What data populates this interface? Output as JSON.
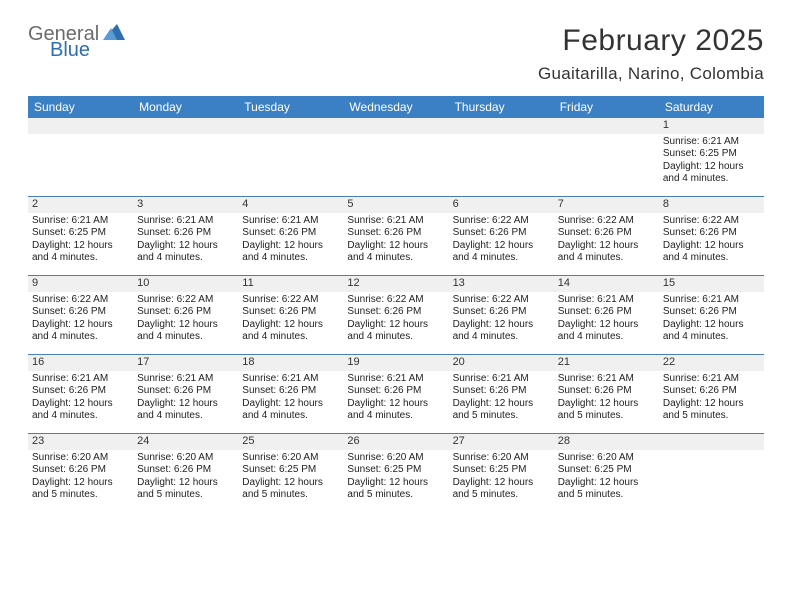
{
  "logo": {
    "line1": "General",
    "line2": "Blue",
    "tri_color": "#2f6fb0"
  },
  "title": "February 2025",
  "location": "Guaitarilla, Narino, Colombia",
  "colors": {
    "header_bg": "#3b7fc4",
    "header_text": "#ffffff",
    "row_border": "#4a7fb5",
    "daynum_bg": "#f0f0f0",
    "text": "#222222",
    "logo_grey": "#6b6b6b",
    "logo_blue": "#2f6fb0"
  },
  "weekdays": [
    "Sunday",
    "Monday",
    "Tuesday",
    "Wednesday",
    "Thursday",
    "Friday",
    "Saturday"
  ],
  "weeks": [
    [
      {
        "day": null
      },
      {
        "day": null
      },
      {
        "day": null
      },
      {
        "day": null
      },
      {
        "day": null
      },
      {
        "day": null
      },
      {
        "day": "1",
        "sunrise": "Sunrise: 6:21 AM",
        "sunset": "Sunset: 6:25 PM",
        "daylight1": "Daylight: 12 hours",
        "daylight2": "and 4 minutes."
      }
    ],
    [
      {
        "day": "2",
        "sunrise": "Sunrise: 6:21 AM",
        "sunset": "Sunset: 6:25 PM",
        "daylight1": "Daylight: 12 hours",
        "daylight2": "and 4 minutes."
      },
      {
        "day": "3",
        "sunrise": "Sunrise: 6:21 AM",
        "sunset": "Sunset: 6:26 PM",
        "daylight1": "Daylight: 12 hours",
        "daylight2": "and 4 minutes."
      },
      {
        "day": "4",
        "sunrise": "Sunrise: 6:21 AM",
        "sunset": "Sunset: 6:26 PM",
        "daylight1": "Daylight: 12 hours",
        "daylight2": "and 4 minutes."
      },
      {
        "day": "5",
        "sunrise": "Sunrise: 6:21 AM",
        "sunset": "Sunset: 6:26 PM",
        "daylight1": "Daylight: 12 hours",
        "daylight2": "and 4 minutes."
      },
      {
        "day": "6",
        "sunrise": "Sunrise: 6:22 AM",
        "sunset": "Sunset: 6:26 PM",
        "daylight1": "Daylight: 12 hours",
        "daylight2": "and 4 minutes."
      },
      {
        "day": "7",
        "sunrise": "Sunrise: 6:22 AM",
        "sunset": "Sunset: 6:26 PM",
        "daylight1": "Daylight: 12 hours",
        "daylight2": "and 4 minutes."
      },
      {
        "day": "8",
        "sunrise": "Sunrise: 6:22 AM",
        "sunset": "Sunset: 6:26 PM",
        "daylight1": "Daylight: 12 hours",
        "daylight2": "and 4 minutes."
      }
    ],
    [
      {
        "day": "9",
        "sunrise": "Sunrise: 6:22 AM",
        "sunset": "Sunset: 6:26 PM",
        "daylight1": "Daylight: 12 hours",
        "daylight2": "and 4 minutes."
      },
      {
        "day": "10",
        "sunrise": "Sunrise: 6:22 AM",
        "sunset": "Sunset: 6:26 PM",
        "daylight1": "Daylight: 12 hours",
        "daylight2": "and 4 minutes."
      },
      {
        "day": "11",
        "sunrise": "Sunrise: 6:22 AM",
        "sunset": "Sunset: 6:26 PM",
        "daylight1": "Daylight: 12 hours",
        "daylight2": "and 4 minutes."
      },
      {
        "day": "12",
        "sunrise": "Sunrise: 6:22 AM",
        "sunset": "Sunset: 6:26 PM",
        "daylight1": "Daylight: 12 hours",
        "daylight2": "and 4 minutes."
      },
      {
        "day": "13",
        "sunrise": "Sunrise: 6:22 AM",
        "sunset": "Sunset: 6:26 PM",
        "daylight1": "Daylight: 12 hours",
        "daylight2": "and 4 minutes."
      },
      {
        "day": "14",
        "sunrise": "Sunrise: 6:21 AM",
        "sunset": "Sunset: 6:26 PM",
        "daylight1": "Daylight: 12 hours",
        "daylight2": "and 4 minutes."
      },
      {
        "day": "15",
        "sunrise": "Sunrise: 6:21 AM",
        "sunset": "Sunset: 6:26 PM",
        "daylight1": "Daylight: 12 hours",
        "daylight2": "and 4 minutes."
      }
    ],
    [
      {
        "day": "16",
        "sunrise": "Sunrise: 6:21 AM",
        "sunset": "Sunset: 6:26 PM",
        "daylight1": "Daylight: 12 hours",
        "daylight2": "and 4 minutes."
      },
      {
        "day": "17",
        "sunrise": "Sunrise: 6:21 AM",
        "sunset": "Sunset: 6:26 PM",
        "daylight1": "Daylight: 12 hours",
        "daylight2": "and 4 minutes."
      },
      {
        "day": "18",
        "sunrise": "Sunrise: 6:21 AM",
        "sunset": "Sunset: 6:26 PM",
        "daylight1": "Daylight: 12 hours",
        "daylight2": "and 4 minutes."
      },
      {
        "day": "19",
        "sunrise": "Sunrise: 6:21 AM",
        "sunset": "Sunset: 6:26 PM",
        "daylight1": "Daylight: 12 hours",
        "daylight2": "and 4 minutes."
      },
      {
        "day": "20",
        "sunrise": "Sunrise: 6:21 AM",
        "sunset": "Sunset: 6:26 PM",
        "daylight1": "Daylight: 12 hours",
        "daylight2": "and 5 minutes."
      },
      {
        "day": "21",
        "sunrise": "Sunrise: 6:21 AM",
        "sunset": "Sunset: 6:26 PM",
        "daylight1": "Daylight: 12 hours",
        "daylight2": "and 5 minutes."
      },
      {
        "day": "22",
        "sunrise": "Sunrise: 6:21 AM",
        "sunset": "Sunset: 6:26 PM",
        "daylight1": "Daylight: 12 hours",
        "daylight2": "and 5 minutes."
      }
    ],
    [
      {
        "day": "23",
        "sunrise": "Sunrise: 6:20 AM",
        "sunset": "Sunset: 6:26 PM",
        "daylight1": "Daylight: 12 hours",
        "daylight2": "and 5 minutes."
      },
      {
        "day": "24",
        "sunrise": "Sunrise: 6:20 AM",
        "sunset": "Sunset: 6:26 PM",
        "daylight1": "Daylight: 12 hours",
        "daylight2": "and 5 minutes."
      },
      {
        "day": "25",
        "sunrise": "Sunrise: 6:20 AM",
        "sunset": "Sunset: 6:25 PM",
        "daylight1": "Daylight: 12 hours",
        "daylight2": "and 5 minutes."
      },
      {
        "day": "26",
        "sunrise": "Sunrise: 6:20 AM",
        "sunset": "Sunset: 6:25 PM",
        "daylight1": "Daylight: 12 hours",
        "daylight2": "and 5 minutes."
      },
      {
        "day": "27",
        "sunrise": "Sunrise: 6:20 AM",
        "sunset": "Sunset: 6:25 PM",
        "daylight1": "Daylight: 12 hours",
        "daylight2": "and 5 minutes."
      },
      {
        "day": "28",
        "sunrise": "Sunrise: 6:20 AM",
        "sunset": "Sunset: 6:25 PM",
        "daylight1": "Daylight: 12 hours",
        "daylight2": "and 5 minutes."
      },
      {
        "day": null
      }
    ]
  ]
}
